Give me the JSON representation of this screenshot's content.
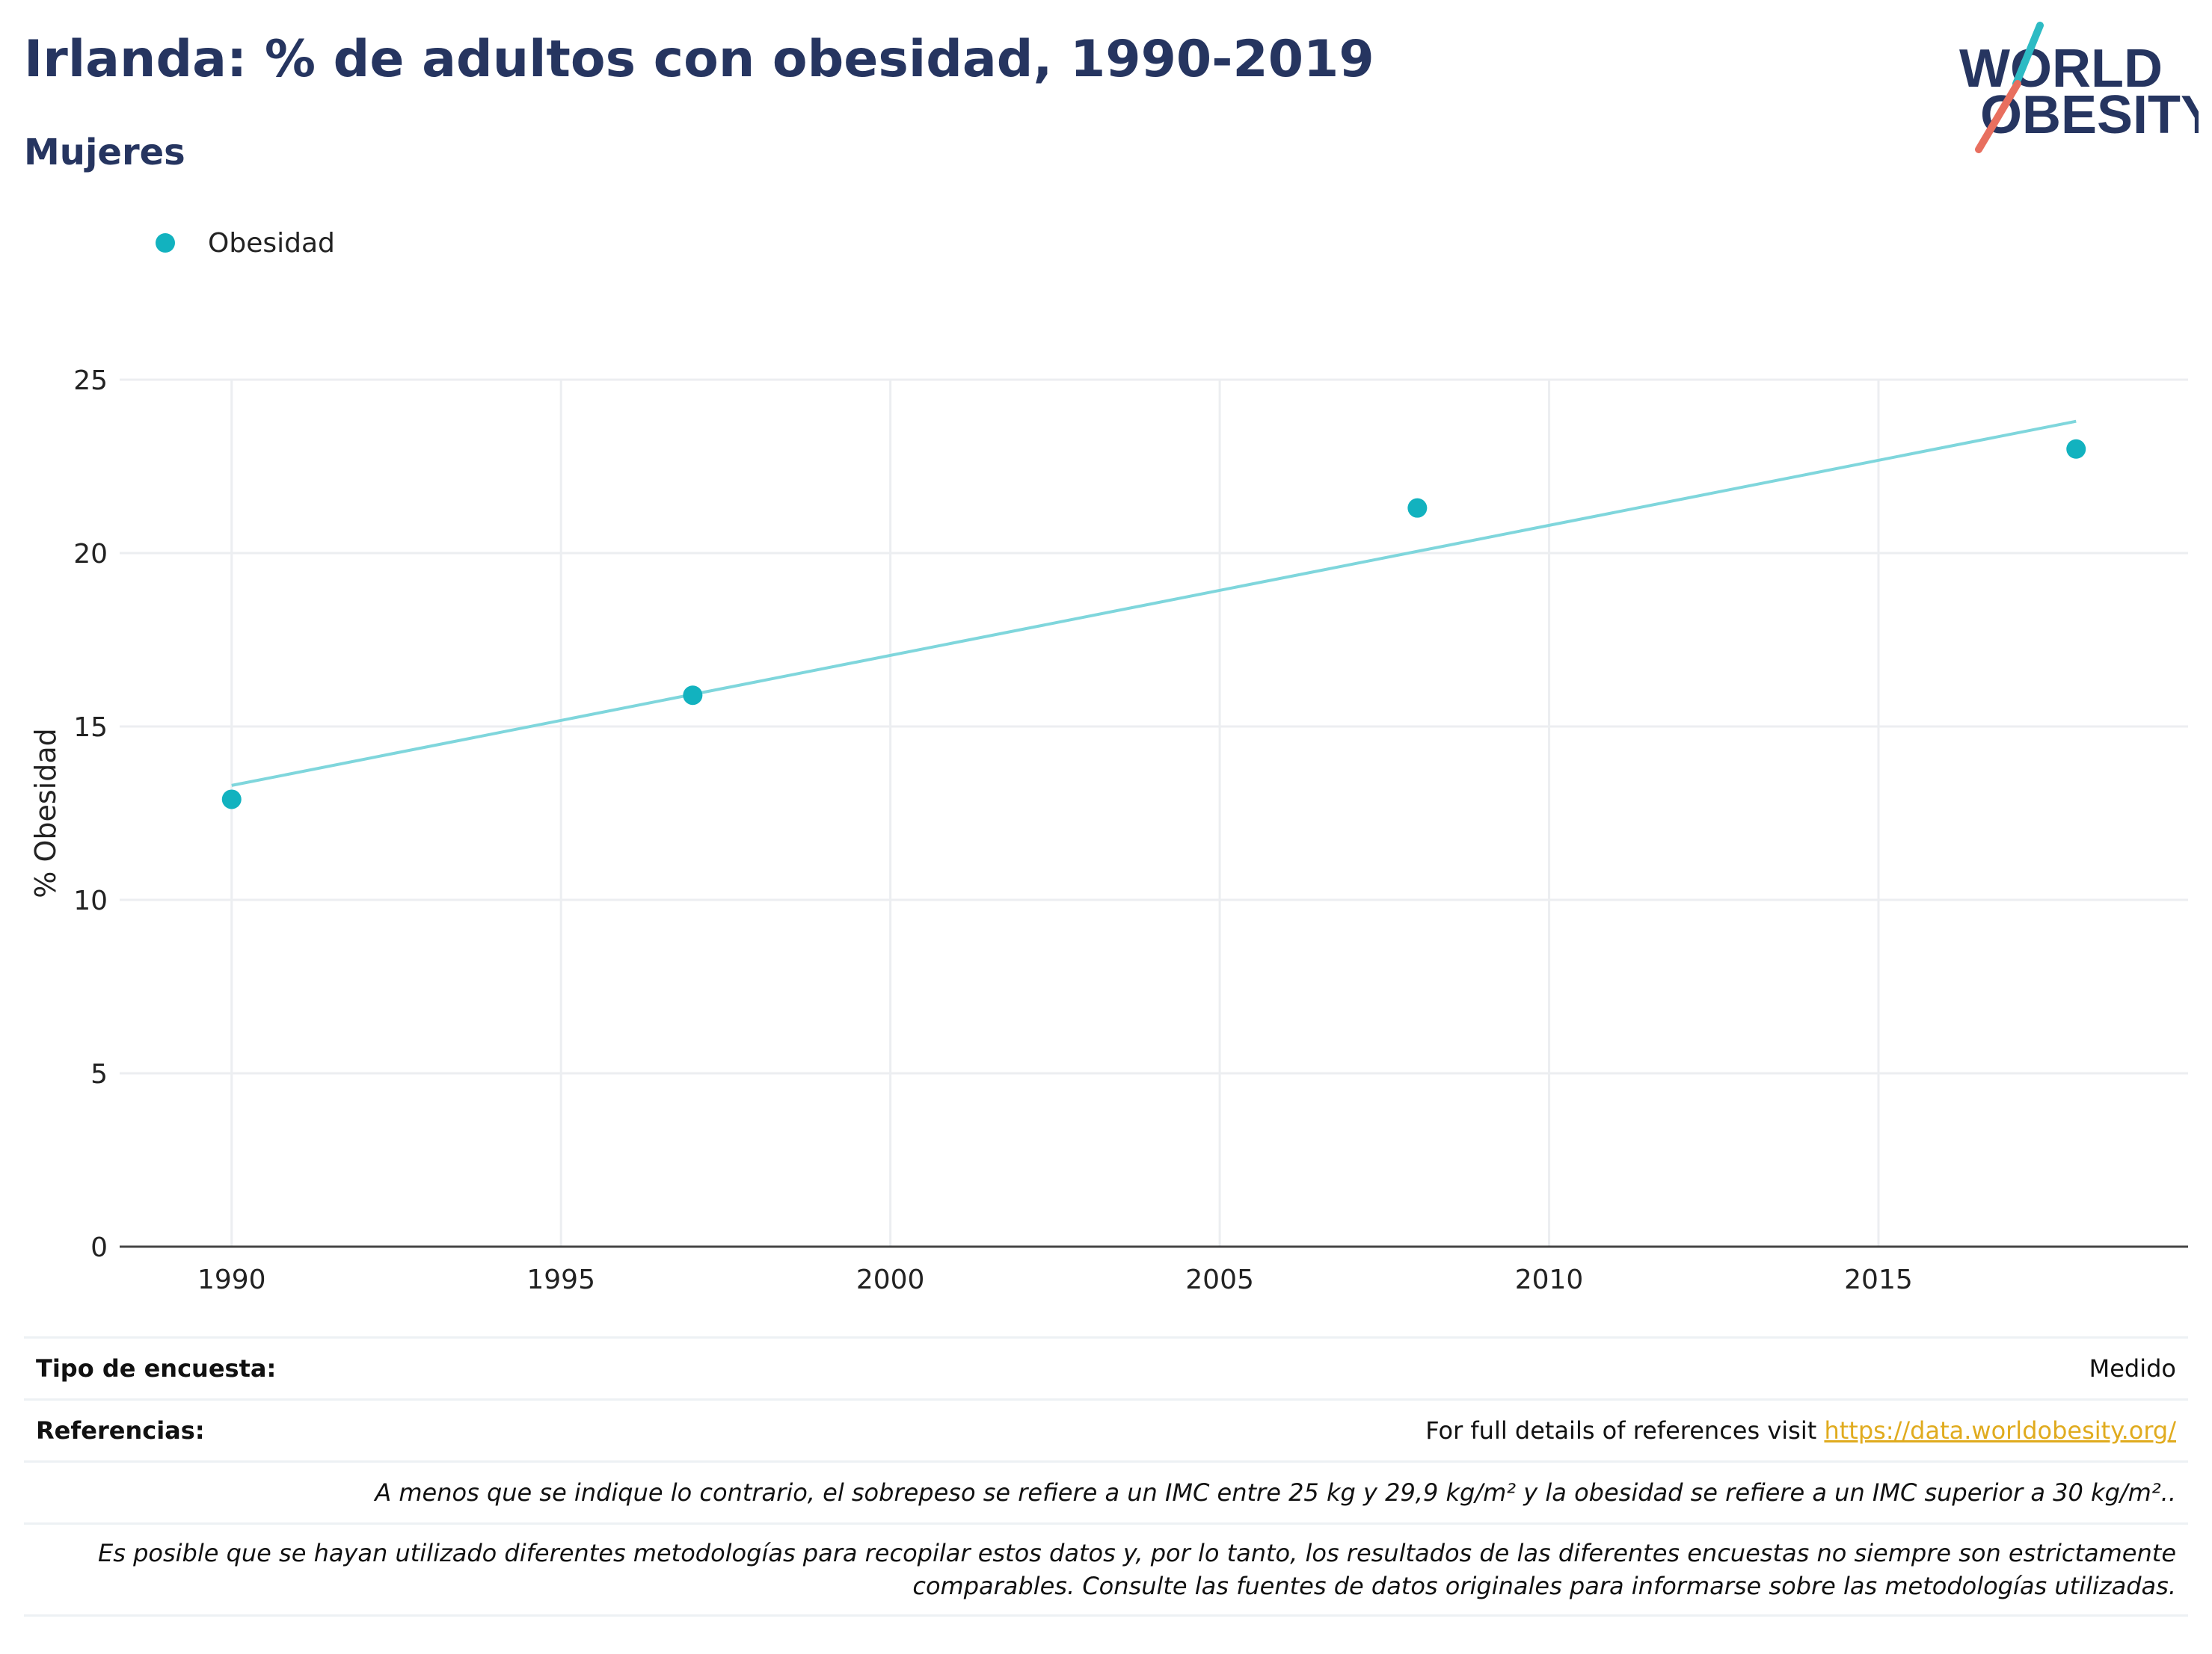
{
  "header": {
    "title": "Irlanda: % de adultos con obesidad, 1990-2019",
    "subtitle": "Mujeres"
  },
  "logo": {
    "line1": "WORLD",
    "line2": "OBESITY"
  },
  "colors": {
    "series": "#12b2bf",
    "trend": "#7fd6dc",
    "title": "#263560",
    "link": "#e0ab1e",
    "grid": "#eceef1"
  },
  "chart_data": {
    "type": "scatter",
    "title": "Irlanda: % de adultos con obesidad, 1990-2019",
    "subtitle": "Mujeres",
    "xlabel": "",
    "ylabel": "% Obesidad",
    "xlim": [
      1988.3,
      2019.7
    ],
    "ylim": [
      0,
      25
    ],
    "xticks": [
      1990,
      1995,
      2000,
      2005,
      2010,
      2015
    ],
    "yticks": [
      0,
      5,
      10,
      15,
      20,
      25
    ],
    "grid": true,
    "legend": "top-left",
    "series": [
      {
        "name": "Obesidad",
        "x": [
          1990,
          1997,
          2008,
          2018
        ],
        "y": [
          12.9,
          15.9,
          21.3,
          23.0
        ]
      }
    ],
    "trendline": {
      "x": [
        1990,
        2018
      ],
      "y": [
        13.3,
        23.8
      ]
    }
  },
  "footer": {
    "survey_label": "Tipo de encuesta:",
    "survey_value": "Medido",
    "refs_label": "Referencias:",
    "refs_text": "For full details of references visit ",
    "refs_link": "https://data.worldobesity.org/",
    "note1": "A menos que se indique lo contrario, el sobrepeso se refiere a un IMC entre 25 kg y 29,9 kg/m² y la obesidad se refiere a un IMC superior a 30 kg/m²..",
    "note2": "Es posible que se hayan utilizado diferentes metodologías para recopilar estos datos y, por lo tanto, los resultados de las diferentes encuestas no siempre son estrictamente comparables. Consulte las fuentes de datos originales para informarse sobre las metodologías utilizadas."
  }
}
